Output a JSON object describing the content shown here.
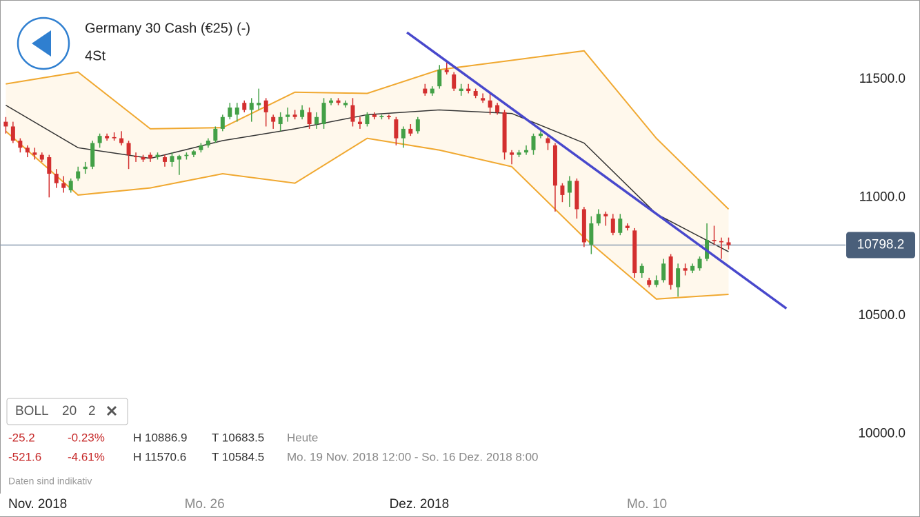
{
  "header": {
    "title": "Germany 30 Cash (€25) (-)",
    "subtitle": "4St"
  },
  "indicator": {
    "name": "BOLL",
    "period": 20,
    "deviation": 2
  },
  "stats": [
    {
      "change": "-25.2",
      "change_pct": "-0.23%",
      "high": "H 10886.9",
      "low": "T 10683.5",
      "period": "Heute"
    },
    {
      "change": "-521.6",
      "change_pct": "-4.61%",
      "high": "H 11570.6",
      "low": "T 10584.5",
      "period": "Mo. 19 Nov. 2018 12:00 - So. 16 Dez. 2018 8:00"
    }
  ],
  "note": "Daten sind indikativ",
  "chart_data": {
    "type": "candlestick",
    "period_label": "Nov. 2018",
    "up_color": "#43a047",
    "down_color": "#d32f2f",
    "open": [
      11320,
      11300,
      11240,
      11210,
      11190,
      11180,
      11170,
      11100,
      11060,
      11030,
      11080,
      11120,
      11130,
      11230,
      11260,
      11255,
      11250,
      11230,
      11175,
      11170,
      11180,
      11170,
      11170,
      11150,
      11160,
      11175,
      11180,
      11200,
      11220,
      11240,
      11290,
      11340,
      11350,
      11400,
      11370,
      11390,
      11410,
      11340,
      11310,
      11340,
      11350,
      11340,
      11360,
      11310,
      11310,
      11400,
      11410,
      11390,
      11390,
      11320,
      11310,
      11350,
      11340,
      11345,
      11330,
      11250,
      11290,
      11280,
      11460,
      11440,
      11470,
      11540,
      11520,
      11450,
      11460,
      11450,
      11420,
      11410,
      11390,
      11360,
      11190,
      11180,
      11190,
      11200,
      11260,
      11250,
      11220,
      11050,
      11020,
      11070,
      10950,
      10800,
      10890,
      10930,
      10910,
      10850,
      10880,
      10860,
      10680,
      10650,
      10630,
      10650,
      10750,
      10620,
      10700,
      10690,
      10700,
      10740,
      10820,
      10815,
      10810
    ],
    "high": [
      11340,
      11320,
      11250,
      11220,
      11210,
      11190,
      11180,
      11120,
      11090,
      11080,
      11130,
      11150,
      11240,
      11270,
      11270,
      11275,
      11280,
      11240,
      11190,
      11180,
      11190,
      11190,
      11180,
      11190,
      11180,
      11190,
      11200,
      11230,
      11250,
      11300,
      11350,
      11400,
      11400,
      11410,
      11420,
      11460,
      11420,
      11350,
      11360,
      11380,
      11370,
      11390,
      11380,
      11360,
      11420,
      11420,
      11420,
      11410,
      11420,
      11340,
      11360,
      11360,
      11350,
      11350,
      11340,
      11300,
      11310,
      11340,
      11480,
      11470,
      11560,
      11570,
      11530,
      11480,
      11480,
      11460,
      11440,
      11440,
      11400,
      11370,
      11200,
      11200,
      11220,
      11270,
      11280,
      11260,
      11230,
      11060,
      11090,
      11080,
      10960,
      10920,
      10950,
      10940,
      10930,
      10930,
      10890,
      10870,
      10720,
      10660,
      10670,
      10740,
      10760,
      10720,
      10720,
      10720,
      10750,
      10890,
      10880,
      10830,
      10830
    ],
    "low": [
      11270,
      11230,
      11190,
      11170,
      11160,
      11150,
      11000,
      11040,
      11020,
      11020,
      11070,
      11100,
      11120,
      11210,
      11240,
      11240,
      11220,
      11120,
      11150,
      11150,
      11150,
      11160,
      11130,
      11130,
      11095,
      11160,
      11170,
      11190,
      11210,
      11230,
      11280,
      11330,
      11320,
      11360,
      11320,
      11370,
      11300,
      11290,
      11280,
      11320,
      11330,
      11330,
      11290,
      11290,
      11290,
      11390,
      11390,
      11380,
      11300,
      11290,
      11300,
      11330,
      11330,
      11330,
      11220,
      11210,
      11260,
      11270,
      11430,
      11430,
      11460,
      11520,
      11450,
      11430,
      11440,
      11420,
      11400,
      11350,
      11350,
      11160,
      11140,
      11170,
      11180,
      11180,
      11250,
      11200,
      10940,
      10980,
      10960,
      10910,
      10790,
      10760,
      10880,
      10880,
      10840,
      10840,
      10860,
      10660,
      10660,
      10620,
      10620,
      10640,
      10610,
      10580,
      10670,
      10680,
      10690,
      10730,
      10800,
      10740,
      10780
    ],
    "close": [
      11300,
      11240,
      11210,
      11190,
      11180,
      11160,
      11100,
      11060,
      11040,
      11070,
      11110,
      11130,
      11230,
      11260,
      11250,
      11250,
      11230,
      11180,
      11170,
      11160,
      11165,
      11180,
      11150,
      11175,
      11175,
      11180,
      11195,
      11220,
      11240,
      11290,
      11340,
      11380,
      11380,
      11370,
      11400,
      11400,
      11360,
      11320,
      11340,
      11350,
      11340,
      11370,
      11310,
      11340,
      11400,
      11410,
      11400,
      11400,
      11320,
      11310,
      11350,
      11340,
      11345,
      11340,
      11250,
      11290,
      11270,
      11330,
      11440,
      11460,
      11540,
      11530,
      11460,
      11460,
      11450,
      11430,
      11410,
      11380,
      11360,
      11190,
      11180,
      11190,
      11200,
      11260,
      11270,
      11230,
      11050,
      11010,
      11070,
      10950,
      10810,
      10890,
      10930,
      10920,
      10850,
      10910,
      10870,
      10680,
      10710,
      10630,
      10650,
      10720,
      10630,
      10700,
      10690,
      10710,
      10740,
      10820,
      10815,
      10810,
      10798.2
    ],
    "bollinger": {
      "x": [
        0,
        10,
        20,
        30,
        40,
        50,
        60,
        70,
        80,
        90,
        100
      ],
      "upper": [
        11480,
        11530,
        11290,
        11295,
        11445,
        11440,
        11540,
        11580,
        11620,
        11250,
        10950
      ],
      "middle": [
        11390,
        11210,
        11165,
        11240,
        11290,
        11350,
        11370,
        11355,
        11230,
        10930,
        10770
      ],
      "lower": [
        11280,
        11010,
        11040,
        11100,
        11060,
        11250,
        11200,
        11130,
        10830,
        10570,
        10590
      ],
      "band_color": "#f0a830",
      "middle_color": "#333333",
      "fill": "#fff8ec"
    },
    "trendline": {
      "x": [
        55.5,
        108
      ],
      "values": [
        11698,
        10530
      ],
      "color": "#4848cc"
    },
    "last_price": 10798.2,
    "xlim": [
      -0.8,
      115.6
    ],
    "xticks": [
      {
        "value": 27.5,
        "label": "Mo. 26"
      },
      {
        "value": 57.2,
        "label": "Dez. 2018"
      },
      {
        "value": 88.7,
        "label": "Mo. 10"
      }
    ],
    "ylim": [
      9750,
      11835
    ],
    "yticks": [
      {
        "value": 10000,
        "label": "10000.0"
      },
      {
        "value": 10500,
        "label": "10500.0"
      },
      {
        "value": 11000,
        "label": "11000.0"
      },
      {
        "value": 11500,
        "label": "11500.0"
      }
    ],
    "grid": true
  }
}
